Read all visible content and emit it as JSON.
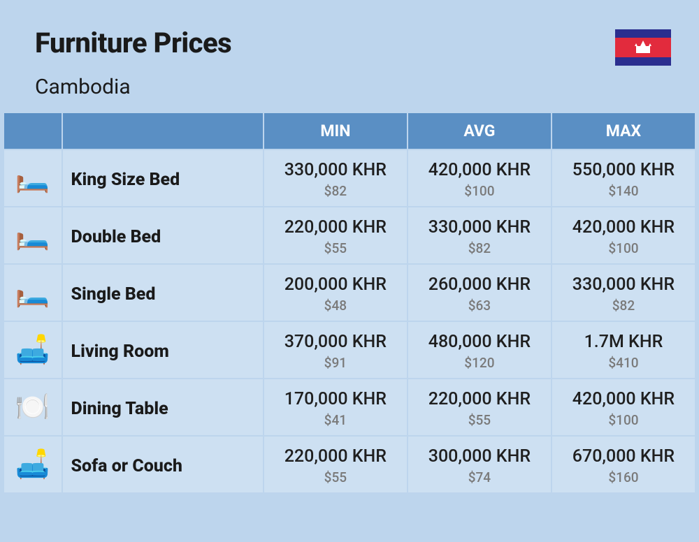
{
  "header": {
    "title": "Furniture Prices",
    "subtitle": "Cambodia"
  },
  "flag": {
    "stripe_top": "#2b2e8f",
    "stripe_mid": "#e22b3d",
    "stripe_bot": "#2b2e8f",
    "temple": "#ffffff"
  },
  "columns": {
    "min": "MIN",
    "avg": "AVG",
    "max": "MAX"
  },
  "colors": {
    "page_bg": "#bdd5ed",
    "header_bg": "#5a8fc4",
    "header_text": "#ffffff",
    "cell_bg": "#cde0f2",
    "khr_text": "#1f1f1f",
    "usd_text": "#7a7a7a",
    "title_text": "#1a1a1a"
  },
  "typography": {
    "title_size": 40,
    "subtitle_size": 30,
    "header_size": 23,
    "name_size": 25,
    "khr_size": 25,
    "usd_size": 19
  },
  "rows": [
    {
      "icon": "🛏️",
      "name": "King Size Bed",
      "min_khr": "330,000 KHR",
      "min_usd": "$82",
      "avg_khr": "420,000 KHR",
      "avg_usd": "$100",
      "max_khr": "550,000 KHR",
      "max_usd": "$140"
    },
    {
      "icon": "🛏️",
      "name": "Double Bed",
      "min_khr": "220,000 KHR",
      "min_usd": "$55",
      "avg_khr": "330,000 KHR",
      "avg_usd": "$82",
      "max_khr": "420,000 KHR",
      "max_usd": "$100"
    },
    {
      "icon": "🛏️",
      "name": "Single Bed",
      "min_khr": "200,000 KHR",
      "min_usd": "$48",
      "avg_khr": "260,000 KHR",
      "avg_usd": "$63",
      "max_khr": "330,000 KHR",
      "max_usd": "$82"
    },
    {
      "icon": "🛋️",
      "name": "Living Room",
      "min_khr": "370,000 KHR",
      "min_usd": "$91",
      "avg_khr": "480,000 KHR",
      "avg_usd": "$120",
      "max_khr": "1.7M KHR",
      "max_usd": "$410"
    },
    {
      "icon": "🍽️",
      "name": "Dining Table",
      "min_khr": "170,000 KHR",
      "min_usd": "$41",
      "avg_khr": "220,000 KHR",
      "avg_usd": "$55",
      "max_khr": "420,000 KHR",
      "max_usd": "$100"
    },
    {
      "icon": "🛋️",
      "name": "Sofa or Couch",
      "min_khr": "220,000 KHR",
      "min_usd": "$55",
      "avg_khr": "300,000 KHR",
      "avg_usd": "$74",
      "max_khr": "670,000 KHR",
      "max_usd": "$160"
    }
  ]
}
